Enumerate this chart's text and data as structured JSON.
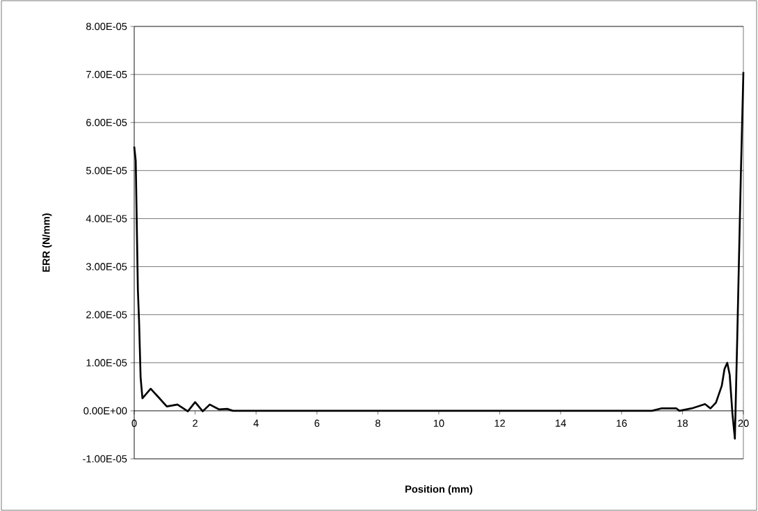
{
  "chart_data": {
    "type": "line",
    "xlabel": "Position (mm)",
    "ylabel": "ERR (N/mm)",
    "xlim": [
      0,
      20
    ],
    "xticks": [
      0,
      2,
      4,
      6,
      8,
      10,
      12,
      14,
      16,
      18,
      20
    ],
    "ylim": [
      -1e-05,
      8e-05
    ],
    "yticks": [
      {
        "value": -1e-05,
        "label": "-1.00E-05"
      },
      {
        "value": 0,
        "label": "0.00E+00"
      },
      {
        "value": 1e-05,
        "label": "1.00E-05"
      },
      {
        "value": 2e-05,
        "label": "2.00E-05"
      },
      {
        "value": 3e-05,
        "label": "3.00E-05"
      },
      {
        "value": 4e-05,
        "label": "4.00E-05"
      },
      {
        "value": 5e-05,
        "label": "5.00E-05"
      },
      {
        "value": 6e-05,
        "label": "6.00E-05"
      },
      {
        "value": 7e-05,
        "label": "7.00E-05"
      },
      {
        "value": 8e-05,
        "label": "8.00E-05"
      }
    ],
    "grid": "y",
    "marker": "none",
    "line_style": "solid",
    "series": [
      {
        "color": "#000000",
        "x": [
          0,
          0.05,
          0.12,
          0.16,
          0.21,
          0.27,
          0.54,
          0.8,
          1.07,
          1.42,
          1.76,
          2.0,
          2.25,
          2.48,
          2.78,
          3.05,
          3.24,
          5,
          8,
          11,
          14,
          17.0,
          17.3,
          17.8,
          17.9,
          18.3,
          18.74,
          18.92,
          19.1,
          19.29,
          19.38,
          19.47,
          19.55,
          19.64,
          19.72,
          19.8,
          19.86,
          19.92,
          20.0
        ],
        "values": [
          5.5e-05,
          5.2e-05,
          2.52e-05,
          1.85e-05,
          6.9e-06,
          2.6e-06,
          4.6e-06,
          2.8e-06,
          9e-07,
          1.3e-06,
          -1e-07,
          1.8e-06,
          -1e-07,
          1.3e-06,
          3e-07,
          4e-07,
          0.0,
          0.0,
          0.0,
          0.0,
          0.0,
          0.0,
          5e-07,
          5e-07,
          0.0,
          5e-07,
          1.4e-06,
          5e-07,
          1.7e-06,
          5.2e-06,
          8.7e-06,
          1e-05,
          7.5e-06,
          -6e-07,
          -5.8e-06,
          1.56e-05,
          3.3e-05,
          5e-05,
          7.05e-05
        ]
      }
    ]
  }
}
